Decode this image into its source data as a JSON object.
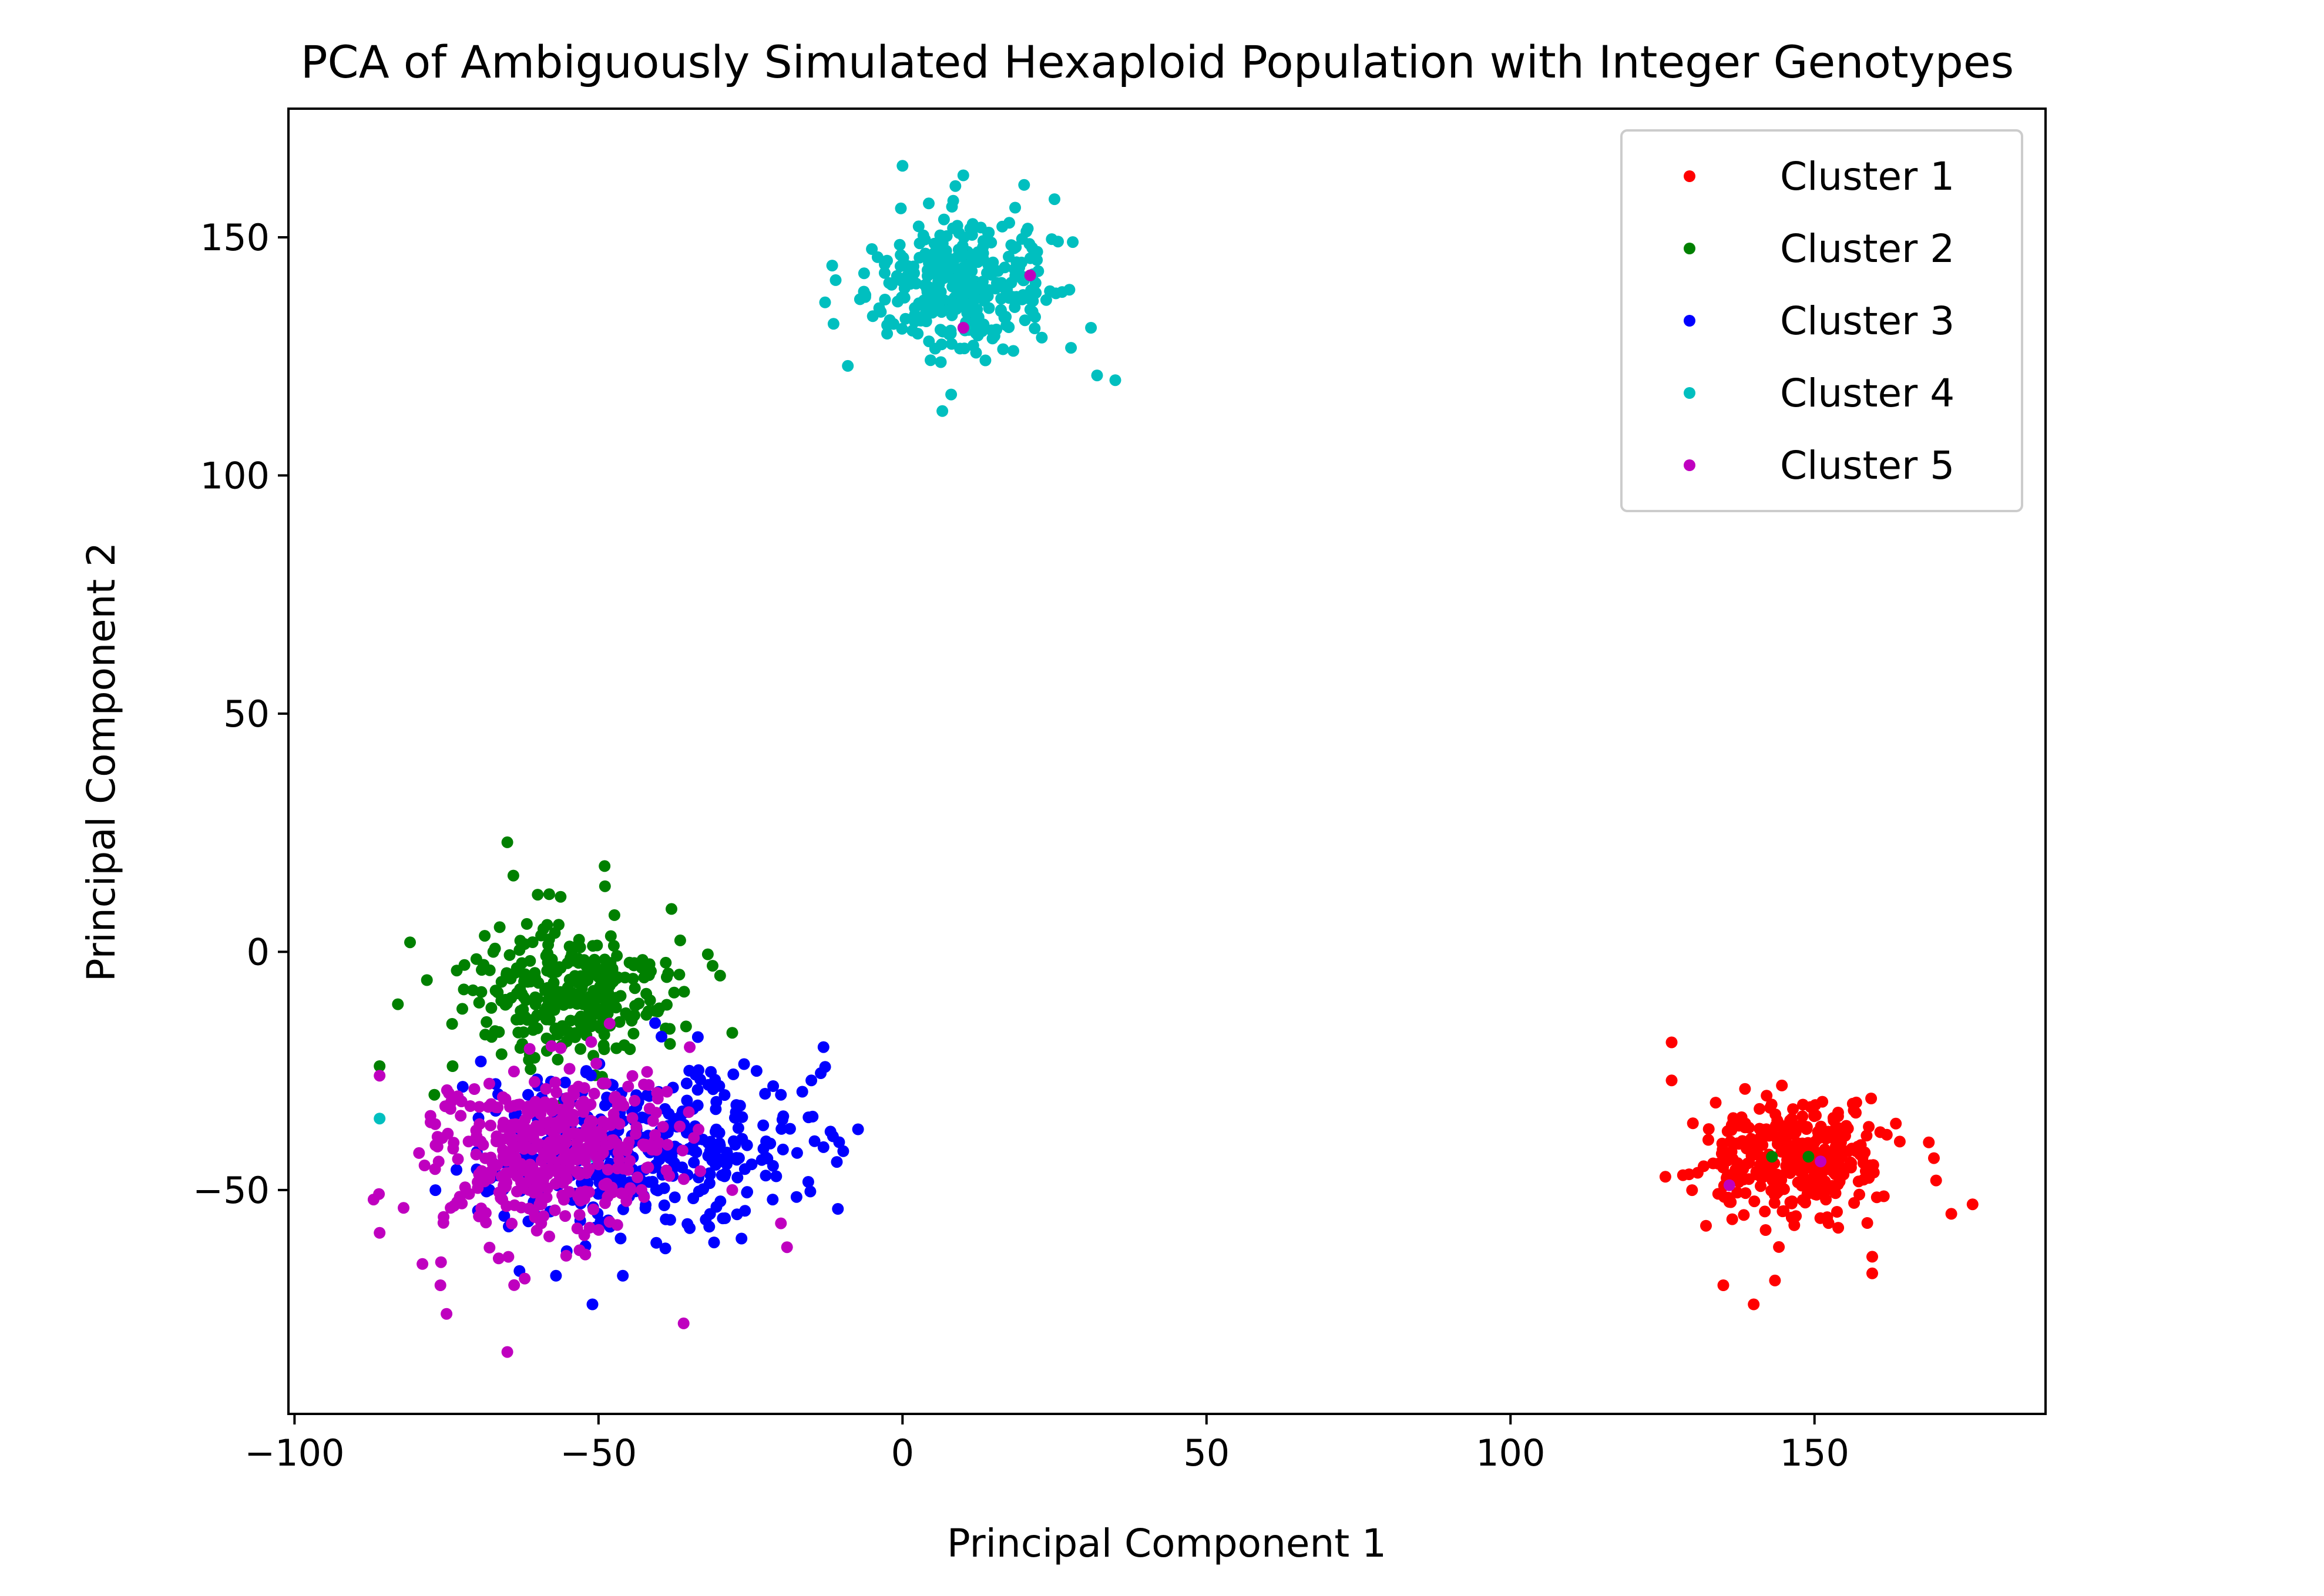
{
  "chart_data": {
    "type": "scatter",
    "title": "PCA of Ambiguously Simulated Hexaploid Population with Integer Genotypes",
    "xlabel": "Principal Component 1",
    "ylabel": "Principal Component 2",
    "xlim": [
      -101,
      188
    ],
    "ylim": [
      -97,
      177
    ],
    "x_ticks": [
      -100,
      -50,
      0,
      50,
      100,
      150
    ],
    "x_tick_labels": [
      "−100",
      "−50",
      "0",
      "50",
      "100",
      "150"
    ],
    "y_ticks": [
      -50,
      0,
      50,
      100,
      150
    ],
    "y_tick_labels": [
      "−50",
      "0",
      "50",
      "100",
      "150"
    ],
    "grid": false,
    "legend_position": "top-right",
    "series": [
      {
        "name": "Cluster 1",
        "color": "#ff0000",
        "centers": [
          [
            147,
            -43
          ]
        ],
        "spread": [
          7,
          6.5
        ],
        "count": 320,
        "seed": 101,
        "points": [
          [
            126.5,
            -19
          ],
          [
            140,
            -74
          ],
          [
            176,
            -53
          ],
          [
            172.5,
            -55
          ],
          [
            168.8,
            -40
          ],
          [
            135,
            -70
          ],
          [
            159.5,
            -67.5
          ],
          [
            143.5,
            -69
          ],
          [
            170,
            -48
          ],
          [
            130,
            -36
          ],
          [
            126.5,
            -27
          ],
          [
            159.5,
            -64
          ]
        ]
      },
      {
        "name": "Cluster 2",
        "color": "#008000",
        "centers": [
          [
            -55,
            -8
          ]
        ],
        "spread": [
          8.5,
          6.5
        ],
        "count": 300,
        "seed": 202,
        "points": [
          [
            -65,
            23
          ],
          [
            -49,
            18
          ],
          [
            -64,
            16
          ],
          [
            -81,
            2
          ],
          [
            -86,
            -24
          ],
          [
            -83,
            -11
          ],
          [
            -28,
            -17
          ],
          [
            -30,
            -5
          ],
          [
            -38,
            9
          ],
          [
            -60,
            12
          ],
          [
            -74,
            -24
          ],
          [
            -56,
            -32
          ],
          [
            143,
            -43
          ],
          [
            149,
            -43
          ],
          [
            -77,
            -30
          ]
        ]
      },
      {
        "name": "Cluster 3",
        "color": "#0000ff",
        "centers": [
          [
            -52,
            -42
          ],
          [
            -32,
            -42
          ]
        ],
        "spread": [
          9,
          8
        ],
        "count": 380,
        "seed": 303,
        "points": [
          [
            -13,
            -20
          ],
          [
            -13,
            -41
          ],
          [
            -15,
            -27
          ],
          [
            -24,
            -25
          ],
          [
            -51,
            -74
          ],
          [
            -46,
            -68
          ],
          [
            -63,
            -67
          ],
          [
            -27,
            -37
          ],
          [
            -20,
            -30
          ],
          [
            -31,
            -61
          ],
          [
            -35,
            -58
          ],
          [
            -57,
            -68
          ],
          [
            -70,
            -42
          ],
          [
            -52,
            -25
          ]
        ]
      },
      {
        "name": "Cluster 4",
        "color": "#00bfbf",
        "centers": [
          [
            10,
            140
          ]
        ],
        "spread": [
          7.5,
          7
        ],
        "count": 330,
        "seed": 404,
        "points": [
          [
            0,
            165
          ],
          [
            10,
            163
          ],
          [
            35,
            120
          ],
          [
            32,
            121
          ],
          [
            -9,
            123
          ],
          [
            8,
            117
          ],
          [
            -11,
            141
          ],
          [
            25,
            158
          ],
          [
            -51,
            -43
          ],
          [
            -86,
            -35
          ],
          [
            20,
            161
          ],
          [
            28,
            149
          ],
          [
            -7,
            137
          ],
          [
            31,
            131
          ]
        ]
      },
      {
        "name": "Cluster 5",
        "color": "#bf00bf",
        "centers": [
          [
            -58,
            -42
          ]
        ],
        "spread": [
          10,
          9
        ],
        "count": 420,
        "seed": 505,
        "points": [
          [
            -65,
            -84
          ],
          [
            -36,
            -78
          ],
          [
            -75,
            -76
          ],
          [
            -87,
            -52
          ],
          [
            -86,
            -59
          ],
          [
            -19,
            -62
          ],
          [
            -20,
            -57
          ],
          [
            -76,
            -70
          ],
          [
            10,
            131
          ],
          [
            21,
            142
          ],
          [
            151,
            -44
          ],
          [
            136,
            -49
          ],
          [
            -35,
            -20
          ],
          [
            -86,
            -26
          ],
          [
            -28,
            -50
          ]
        ]
      }
    ]
  }
}
